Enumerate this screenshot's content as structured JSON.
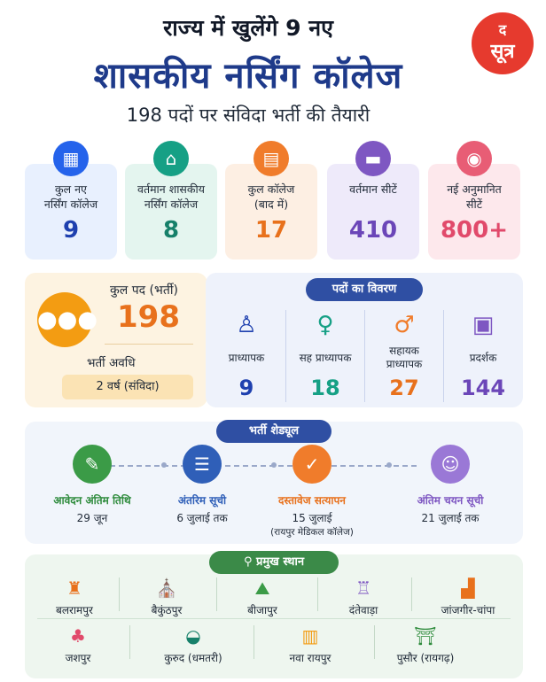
{
  "header": {
    "line1": "राज्य में खुलेंगे 9 नए",
    "line2": "शासकीय नर्सिंग कॉलेज",
    "line3": "198 पदों पर संविदा भर्ती की तैयारी"
  },
  "logo": {
    "top": "द",
    "bottom": "सूत्र"
  },
  "stats": [
    {
      "label": "कुल नए\nनर्सिंग कॉलेज",
      "value": "9",
      "icon": "hospital-icon"
    },
    {
      "label": "वर्तमान शासकीय\nनर्सिंग कॉलेज",
      "value": "8",
      "icon": "government-building-icon"
    },
    {
      "label": "कुल कॉलेज\n(बाद में)",
      "value": "17",
      "icon": "college-building-icon"
    },
    {
      "label": "वर्तमान सीटें",
      "value": "410",
      "icon": "bed-icon"
    },
    {
      "label": "नई अनुमानित\nसीटें",
      "value": "800+",
      "icon": "graduate-icon"
    }
  ],
  "recruitment": {
    "total_label": "कुल पद (भर्ती)",
    "total_value": "198",
    "duration_label": "भर्ती अवधि",
    "duration_value": "2 वर्ष (संविदा)"
  },
  "posts": {
    "title": "पदों का विवरण",
    "items": [
      {
        "label": "प्राध्यापक",
        "value": "9",
        "icon": "lectern-icon"
      },
      {
        "label": "सह प्राध्यापक",
        "value": "18",
        "icon": "teacher-woman-icon"
      },
      {
        "label": "सहायक\nप्राध्यापक",
        "value": "27",
        "icon": "teacher-man-icon"
      },
      {
        "label": "प्रदर्शक",
        "value": "144",
        "icon": "presenter-icon"
      }
    ]
  },
  "schedule": {
    "title": "भर्ती शेड्यूल",
    "steps": [
      {
        "title": "आवेदन अंतिम तिथि",
        "date": "29 जून",
        "note": "",
        "icon": "form-icon"
      },
      {
        "title": "अंतरिम सूची",
        "date": "6 जुलाई तक",
        "note": "",
        "icon": "list-icon"
      },
      {
        "title": "दस्तावेज सत्यापन",
        "date": "15 जुलाई",
        "note": "(रायपुर मेडिकल कॉलेज)",
        "icon": "document-check-icon"
      },
      {
        "title": "अंतिम चयन सूची",
        "date": "21 जुलाई तक",
        "note": "",
        "icon": "user-check-icon"
      }
    ]
  },
  "places": {
    "title": "प्रमुख स्थान",
    "row1": [
      {
        "name": "बलरामपुर",
        "icon": "fort-icon"
      },
      {
        "name": "बैकुंठपुर",
        "icon": "temple-icon"
      },
      {
        "name": "बीजापुर",
        "icon": "landscape-icon"
      },
      {
        "name": "दंतेवाड़ा",
        "icon": "palace-icon"
      },
      {
        "name": "जांजगीर-चांपा",
        "icon": "factory-icon"
      }
    ],
    "row2": [
      {
        "name": "जशपुर",
        "icon": "tree-icon"
      },
      {
        "name": "कुरुद (धमतरी)",
        "icon": "mortar-pestle-icon"
      },
      {
        "name": "नवा रायपुर",
        "icon": "city-icon"
      },
      {
        "name": "पुसौर (रायगढ़)",
        "icon": "gate-icon"
      }
    ]
  },
  "colors": {
    "title_blue": "#1e3a8a",
    "orange": "#e8711c",
    "green": "#16a085",
    "purple": "#6b46b8",
    "pink": "#e14a6b",
    "logo_red": "#e63a2e"
  }
}
